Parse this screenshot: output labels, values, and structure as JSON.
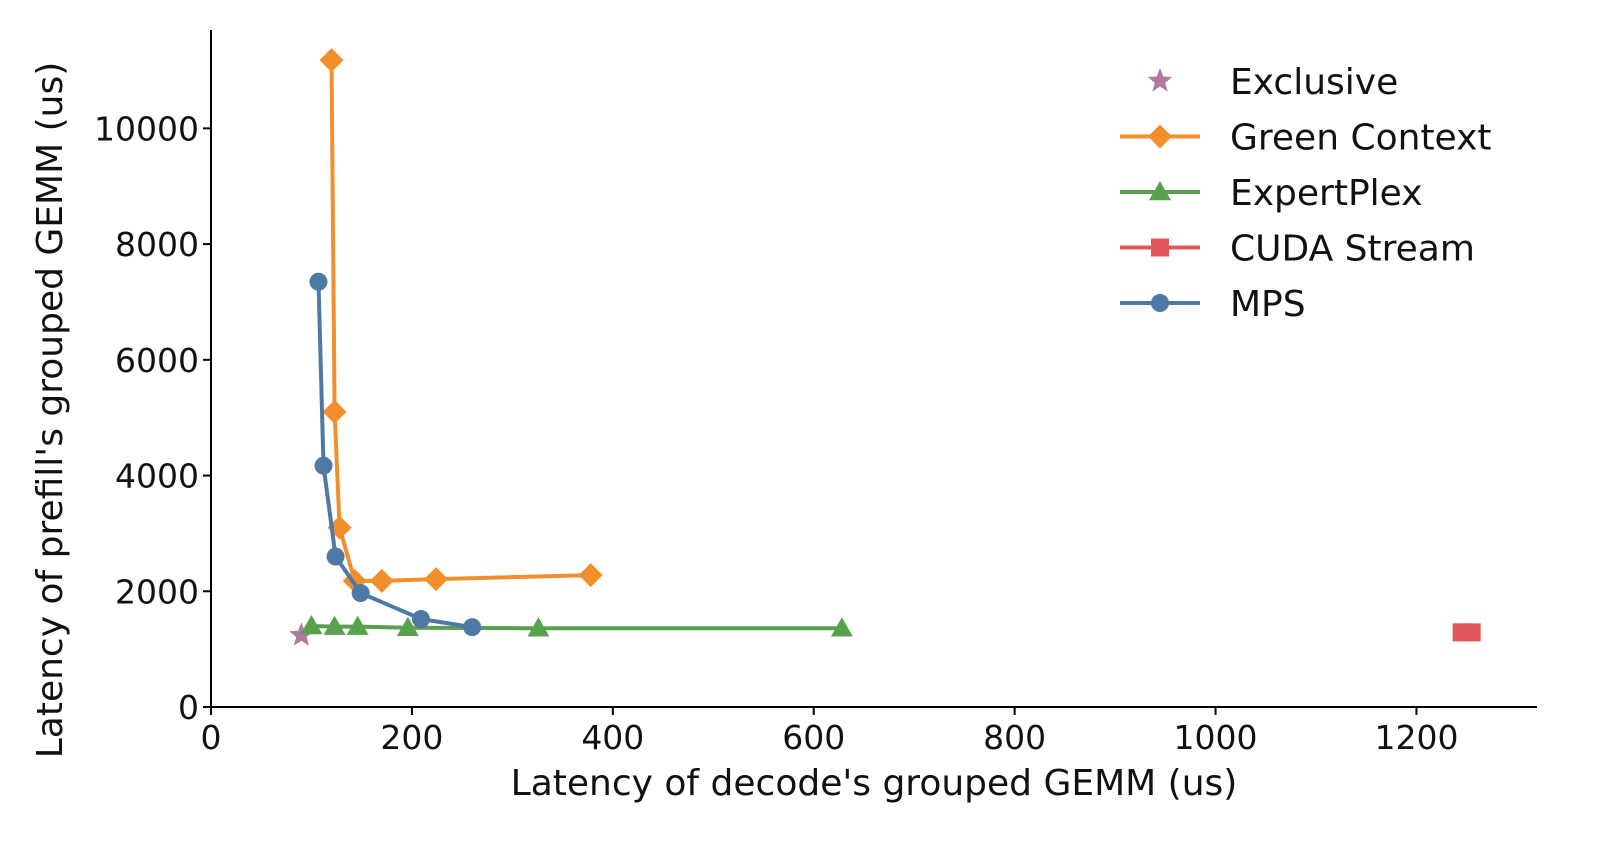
{
  "chart_data": {
    "type": "line",
    "title": "",
    "xlabel": "Latency of decode's grouped GEMM (us)",
    "ylabel": "Latency of prefill's grouped GEMM (us)",
    "xlim": [
      0,
      1320
    ],
    "ylim": [
      0,
      11700
    ],
    "x_ticks": [
      0,
      200,
      400,
      600,
      800,
      1000,
      1200
    ],
    "y_ticks": [
      0,
      2000,
      4000,
      6000,
      8000,
      10000
    ],
    "grid": false,
    "legend_position": "top-right",
    "series": [
      {
        "name": "Exclusive",
        "color": "#b07aa1",
        "marker": "star",
        "line": false,
        "x": [
          90
        ],
        "y": [
          1240
        ]
      },
      {
        "name": "Green Context",
        "color": "#f28e2b",
        "marker": "diamond",
        "line": true,
        "x": [
          120,
          123,
          128,
          143,
          170,
          224,
          378
        ],
        "y": [
          11180,
          5100,
          3100,
          2180,
          2180,
          2210,
          2280
        ]
      },
      {
        "name": "ExpertPlex",
        "color": "#59a14f",
        "marker": "triangle",
        "line": true,
        "x": [
          100,
          123,
          146,
          196,
          326,
          628
        ],
        "y": [
          1400,
          1390,
          1390,
          1370,
          1360,
          1360
        ]
      },
      {
        "name": "CUDA Stream",
        "color": "#e15759",
        "marker": "square",
        "line": true,
        "x": [
          1245,
          1255
        ],
        "y": [
          1290,
          1290
        ]
      },
      {
        "name": "MPS",
        "color": "#4e79a7",
        "marker": "circle",
        "line": true,
        "x": [
          107,
          112,
          124,
          149,
          209,
          260
        ],
        "y": [
          7350,
          4170,
          2600,
          1970,
          1520,
          1380
        ]
      }
    ]
  }
}
